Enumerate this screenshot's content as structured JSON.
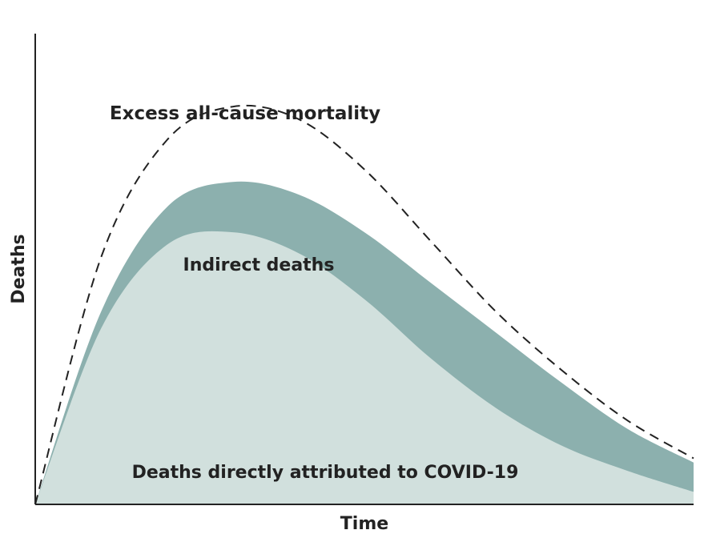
{
  "chart_data": {
    "type": "area",
    "xlabel": "Time",
    "ylabel": "Deaths",
    "x_ticks": "none",
    "y_ticks": "none",
    "grid": false,
    "legend": "none",
    "xlim": [
      0,
      100
    ],
    "ylim": [
      0,
      100
    ],
    "x": [
      0,
      10,
      20,
      30,
      40,
      50,
      60,
      70,
      80,
      90,
      100
    ],
    "series": [
      {
        "name": "Deaths directly attributed to COVID-19",
        "style": "filled area",
        "color": "#d1e0dd",
        "values": [
          0,
          42,
          62,
          65,
          60,
          49,
          35,
          23,
          14,
          8,
          3
        ]
      },
      {
        "name": "Indirect deaths",
        "style": "stacked band on top of direct deaths",
        "color": "#8cb0ae",
        "values": [
          0,
          46,
          71,
          77,
          74,
          65,
          53,
          41,
          29,
          18,
          10
        ]
      },
      {
        "name": "Excess all-cause mortality",
        "style": "dashed line",
        "color": "#222222",
        "values": [
          0,
          59,
          87,
          95,
          92,
          80,
          63,
          46,
          32,
          20,
          11
        ]
      }
    ],
    "annotations": {
      "excess": "Excess all-cause mortality",
      "indirect": "Indirect deaths",
      "direct": "Deaths directly attributed to COVID-19"
    }
  }
}
